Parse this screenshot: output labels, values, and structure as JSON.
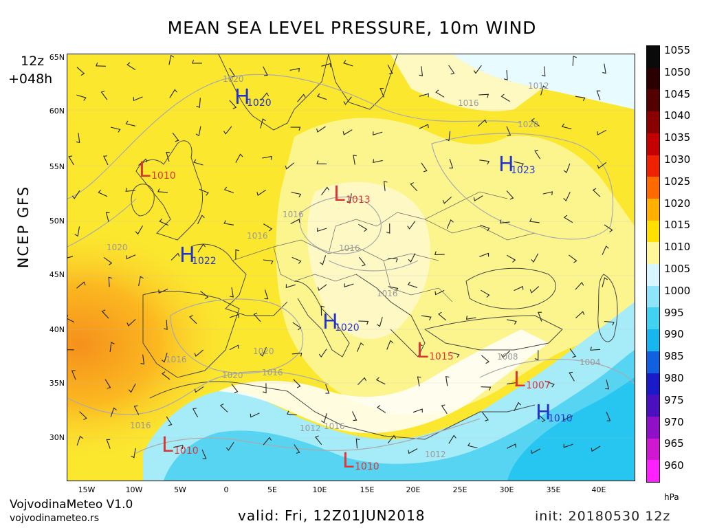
{
  "title": "MEAN SEA LEVEL PRESSURE, 10m WIND",
  "model": "NCEP GFS",
  "run_hour": "12z",
  "lead_time": "+048h",
  "valid": "valid: Fri, 12Z01JUN2018",
  "init": "init: 20180530 12z",
  "credit": {
    "name": "VojvodinaMeteo V1.0",
    "site": "vojvodinameteo.rs"
  },
  "map": {
    "lat_labels": [
      "65N",
      "60N",
      "55N",
      "50N",
      "45N",
      "40N",
      "35N",
      "30N"
    ],
    "lon_labels": [
      "15W",
      "10W",
      "5W",
      "0",
      "5E",
      "10E",
      "15E",
      "20E",
      "25E",
      "30E",
      "35E",
      "40E"
    ],
    "pressure_centers": [
      {
        "type": "H",
        "value": "1020",
        "color": "#2233cc"
      },
      {
        "type": "L",
        "value": "1010",
        "color": "#dd3333"
      },
      {
        "type": "L",
        "value": "1013",
        "color": "#dd3333"
      },
      {
        "type": "H",
        "value": "1023",
        "color": "#2233cc"
      },
      {
        "type": "H",
        "value": "1022",
        "color": "#2233cc"
      },
      {
        "type": "H",
        "value": "1020",
        "color": "#2233cc"
      },
      {
        "type": "L",
        "value": "1015",
        "color": "#dd3333"
      },
      {
        "type": "L",
        "value": "1007",
        "color": "#dd3333"
      },
      {
        "type": "H",
        "value": "1010",
        "color": "#2233cc"
      },
      {
        "type": "L",
        "value": "1010",
        "color": "#dd3333"
      },
      {
        "type": "L",
        "value": "1010",
        "color": "#dd3333"
      }
    ],
    "isobar_labels": [
      "1020",
      "1020",
      "1016",
      "1020",
      "1016",
      "1016",
      "1016",
      "1020",
      "1016",
      "1008",
      "1004",
      "1012",
      "1016",
      "1012",
      "1016",
      "1016",
      "1020",
      "1016",
      "1012"
    ]
  },
  "colorbar": {
    "unit": "hPa",
    "labels": [
      "1055",
      "1050",
      "1045",
      "1040",
      "1035",
      "1030",
      "1025",
      "1020",
      "1015",
      "1010",
      "1005",
      "1000",
      "995",
      "990",
      "985",
      "980",
      "975",
      "970",
      "965",
      "960"
    ],
    "colors": [
      "#ffffff",
      "#0a0a0a",
      "#2a0000",
      "#550000",
      "#8a0000",
      "#c40000",
      "#ee2200",
      "#ff6a00",
      "#ffb000",
      "#ffe000",
      "#fff79a",
      "#d8f6ff",
      "#8ee4f8",
      "#40d2f0",
      "#18b6ee",
      "#1060e0",
      "#1a1ac8",
      "#4a10c0",
      "#9010c8",
      "#d018d0",
      "#ff20ff",
      "#ffffff"
    ]
  }
}
